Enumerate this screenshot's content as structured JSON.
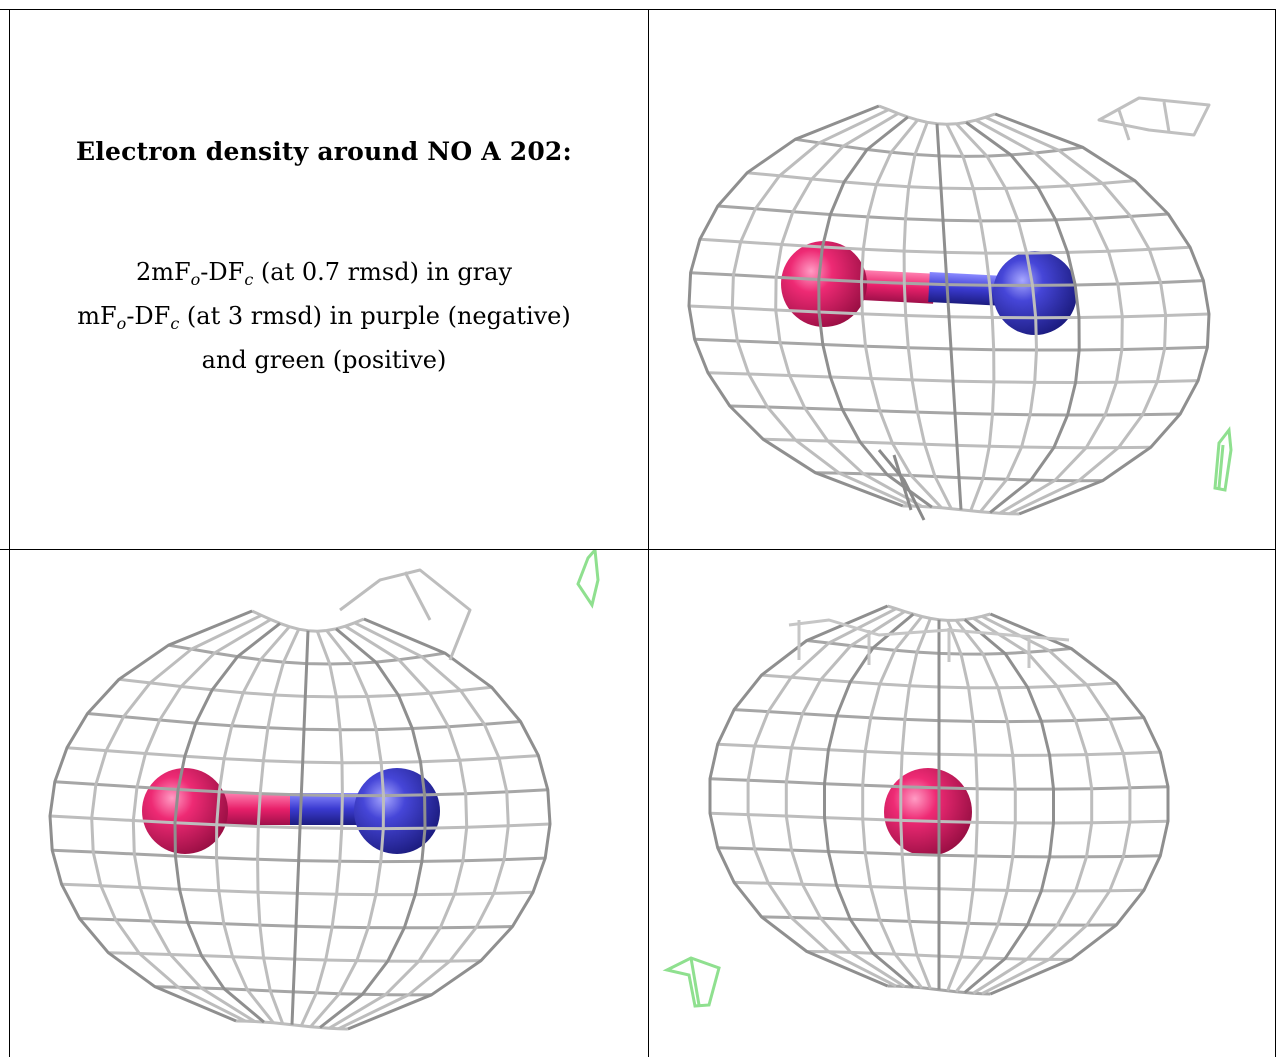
{
  "caption": {
    "title": "Electron density around NO A 202:",
    "line1": {
      "prefix": "2mF",
      "o": "o",
      "mid": "-DF",
      "c": "c",
      "suffix": " (at 0.7 rmsd) in gray"
    },
    "line2": {
      "prefix": "mF",
      "o": "o",
      "mid": "-DF",
      "c": "c",
      "suffix": " (at 3 rmsd) in purple (negative)"
    },
    "line3": "and green (positive)"
  },
  "colors": {
    "mesh": "#c4c4c4",
    "mesh_dark": "#8a8a8a",
    "oxygen": "#e8206a",
    "nitrogen": "#3a3ad0",
    "positive_density": "#8fe08f",
    "border": "#000000"
  },
  "views": [
    {
      "id": "view-top-right",
      "atoms": [
        "oxygen",
        "nitrogen"
      ]
    },
    {
      "id": "view-bottom-left",
      "atoms": [
        "oxygen",
        "nitrogen"
      ]
    },
    {
      "id": "view-bottom-right",
      "atoms": [
        "oxygen"
      ]
    }
  ]
}
